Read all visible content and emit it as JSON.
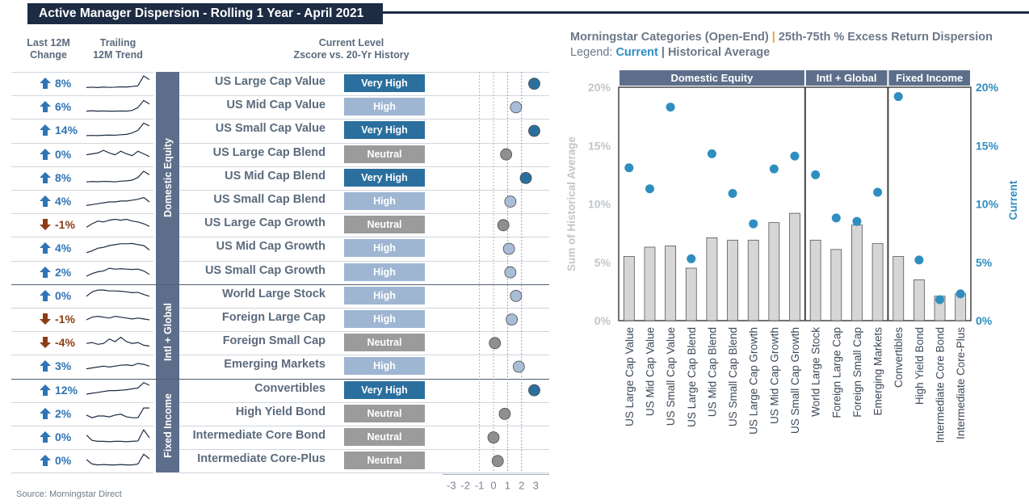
{
  "title": "Active Manager Dispersion - Rolling 1 Year - April 2021",
  "headers": {
    "change_line1": "Last 12M",
    "change_line2": "Change",
    "trend_line1": "Trailing",
    "trend_line2": "12M Trend",
    "level_line1": "Current Level",
    "level_line2": "Zscore vs. 20-Yr History"
  },
  "groups": [
    {
      "label": "Domestic Equity"
    },
    {
      "label": "Intl + Global"
    },
    {
      "label": "Fixed Income"
    }
  ],
  "rows": [
    {
      "change": "8%",
      "dir": "up",
      "name": "US Large Cap Value",
      "level": "Very High",
      "z": 2.9,
      "trend": [
        0.3,
        0.32,
        0.3,
        0.33,
        0.31,
        0.32,
        0.34,
        0.33,
        0.36,
        0.4,
        0.95,
        0.75
      ]
    },
    {
      "change": "6%",
      "dir": "up",
      "name": "US Mid Cap Value",
      "level": "High",
      "z": 1.6,
      "trend": [
        0.3,
        0.32,
        0.3,
        0.31,
        0.3,
        0.3,
        0.31,
        0.3,
        0.34,
        0.5,
        0.9,
        0.7
      ]
    },
    {
      "change": "14%",
      "dir": "up",
      "name": "US Small Cap Value",
      "level": "Very High",
      "z": 2.9,
      "trend": [
        0.25,
        0.26,
        0.25,
        0.27,
        0.28,
        0.27,
        0.3,
        0.32,
        0.4,
        0.55,
        0.95,
        0.8
      ]
    },
    {
      "change": "0%",
      "dir": "up",
      "name": "US Large Cap Blend",
      "level": "Neutral",
      "z": 0.9,
      "trend": [
        0.5,
        0.55,
        0.6,
        0.75,
        0.6,
        0.5,
        0.7,
        0.55,
        0.45,
        0.7,
        0.55,
        0.4
      ]
    },
    {
      "change": "8%",
      "dir": "up",
      "name": "US Mid Cap Blend",
      "level": "Very High",
      "z": 2.3,
      "trend": [
        0.3,
        0.32,
        0.31,
        0.33,
        0.32,
        0.3,
        0.34,
        0.36,
        0.4,
        0.55,
        0.9,
        0.7
      ]
    },
    {
      "change": "4%",
      "dir": "up",
      "name": "US Small Cap Blend",
      "level": "High",
      "z": 1.2,
      "trend": [
        0.3,
        0.35,
        0.4,
        0.45,
        0.5,
        0.5,
        0.55,
        0.55,
        0.6,
        0.65,
        0.75,
        0.5
      ]
    },
    {
      "change": "-1%",
      "dir": "down",
      "name": "US Large Cap Growth",
      "level": "Neutral",
      "z": 0.7,
      "trend": [
        0.4,
        0.6,
        0.75,
        0.7,
        0.8,
        0.85,
        0.8,
        0.85,
        0.75,
        0.7,
        0.6,
        0.45
      ]
    },
    {
      "change": "4%",
      "dir": "up",
      "name": "US Mid Cap Growth",
      "level": "High",
      "z": 1.1,
      "trend": [
        0.3,
        0.4,
        0.55,
        0.6,
        0.7,
        0.75,
        0.8,
        0.8,
        0.82,
        0.75,
        0.7,
        0.45
      ]
    },
    {
      "change": "2%",
      "dir": "up",
      "name": "US Small Cap Growth",
      "level": "High",
      "z": 1.2,
      "trend": [
        0.3,
        0.45,
        0.55,
        0.6,
        0.75,
        0.7,
        0.72,
        0.7,
        0.68,
        0.7,
        0.6,
        0.4
      ]
    },
    {
      "change": "0%",
      "dir": "up",
      "name": "World Large Stock",
      "level": "High",
      "z": 1.6,
      "trend": [
        0.5,
        0.75,
        0.85,
        0.85,
        0.8,
        0.8,
        0.78,
        0.75,
        0.7,
        0.72,
        0.6,
        0.5
      ]
    },
    {
      "change": "-1%",
      "dir": "down",
      "name": "Foreign Large Cap",
      "level": "High",
      "z": 1.3,
      "trend": [
        0.5,
        0.65,
        0.7,
        0.65,
        0.6,
        0.7,
        0.65,
        0.6,
        0.55,
        0.6,
        0.55,
        0.5
      ]
    },
    {
      "change": "-4%",
      "dir": "down",
      "name": "Foreign Small Cap",
      "level": "Neutral",
      "z": 0.1,
      "trend": [
        0.5,
        0.55,
        0.45,
        0.5,
        0.75,
        0.6,
        0.85,
        0.6,
        0.5,
        0.55,
        0.4,
        0.35
      ]
    },
    {
      "change": "3%",
      "dir": "up",
      "name": "Emerging Markets",
      "level": "High",
      "z": 1.8,
      "trend": [
        0.4,
        0.45,
        0.5,
        0.55,
        0.5,
        0.55,
        0.6,
        0.62,
        0.58,
        0.7,
        0.65,
        0.55
      ]
    },
    {
      "change": "12%",
      "dir": "up",
      "name": "Convertibles",
      "level": "Very High",
      "z": 2.9,
      "trend": [
        0.3,
        0.35,
        0.4,
        0.45,
        0.5,
        0.5,
        0.52,
        0.55,
        0.6,
        0.65,
        0.95,
        0.8
      ]
    },
    {
      "change": "2%",
      "dir": "up",
      "name": "High Yield Bond",
      "level": "Neutral",
      "z": 0.8,
      "trend": [
        0.45,
        0.3,
        0.4,
        0.4,
        0.35,
        0.45,
        0.5,
        0.35,
        0.3,
        0.3,
        0.85,
        0.85
      ]
    },
    {
      "change": "0%",
      "dir": "up",
      "name": "Intermediate Core Bond",
      "level": "Neutral",
      "z": 0.0,
      "trend": [
        0.65,
        0.35,
        0.3,
        0.3,
        0.28,
        0.3,
        0.3,
        0.28,
        0.3,
        0.32,
        0.95,
        0.5
      ]
    },
    {
      "change": "0%",
      "dir": "up",
      "name": "Intermediate Core-Plus",
      "level": "Neutral",
      "z": 0.3,
      "trend": [
        0.6,
        0.35,
        0.3,
        0.32,
        0.3,
        0.3,
        0.32,
        0.3,
        0.3,
        0.35,
        0.9,
        0.65
      ]
    }
  ],
  "z_axis": {
    "ticks": [
      -3,
      -2,
      -1,
      0,
      1,
      2,
      3
    ]
  },
  "level_colors": {
    "Very High": "#2a6f9e",
    "High": "#9fb6d3",
    "Neutral": "#9b9b9b"
  },
  "dot_colors": {
    "Very High": "#2a6f9e",
    "High": "#a9bcd8",
    "Neutral": "#8f8f8f"
  },
  "source": "Source: Morningstar Direct",
  "chart_data": {
    "type": "bar",
    "title": "Morningstar Categories (Open-End)",
    "title_sep": "|",
    "subtitle": "25th-75th % Excess Return Dispersion",
    "legend_prefix": "Legend:",
    "legend_current": "Current",
    "legend_sep": "|",
    "legend_hist": "Historical Average",
    "ylabel_left": "Sum of Historical Average",
    "ylabel_right": "Current",
    "ylim": [
      0,
      20
    ],
    "yticks": [
      "0%",
      "5%",
      "10%",
      "15%",
      "20%"
    ],
    "groups": [
      {
        "label": "Domestic Equity",
        "count": 9
      },
      {
        "label": "Intl + Global",
        "count": 4
      },
      {
        "label": "Fixed Income",
        "count": 4
      }
    ],
    "categories": [
      "US Large Cap Value",
      "US Mid Cap Value",
      "US Small Cap Value",
      "US Large Cap Blend",
      "US Mid Cap Blend",
      "US Small Cap Blend",
      "US Large Cap Growth",
      "US Mid Cap Growth",
      "US Small Cap Growth",
      "World Large Stock",
      "Foreign Large Cap",
      "Foreign Small Cap",
      "Emerging Markets",
      "Convertibles",
      "High Yield Bond",
      "Intermediate Core Bond",
      "Intermediate Core-Plus"
    ],
    "series": [
      {
        "name": "Historical Average",
        "values": [
          5.5,
          6.3,
          6.4,
          4.5,
          7.1,
          6.9,
          6.9,
          8.4,
          9.2,
          6.9,
          6.1,
          8.2,
          6.6,
          5.5,
          3.5,
          2.1,
          2.3
        ]
      },
      {
        "name": "Current",
        "values": [
          13.1,
          11.3,
          18.3,
          5.3,
          14.3,
          10.9,
          8.3,
          13.0,
          14.1,
          12.5,
          8.8,
          8.5,
          11.0,
          19.2,
          5.2,
          1.8,
          2.3
        ]
      }
    ],
    "colors": {
      "bar": "#d6d6d6",
      "bar_stroke": "#555555",
      "dot": "#2e8ec0",
      "header": "#5c6e8a"
    }
  }
}
